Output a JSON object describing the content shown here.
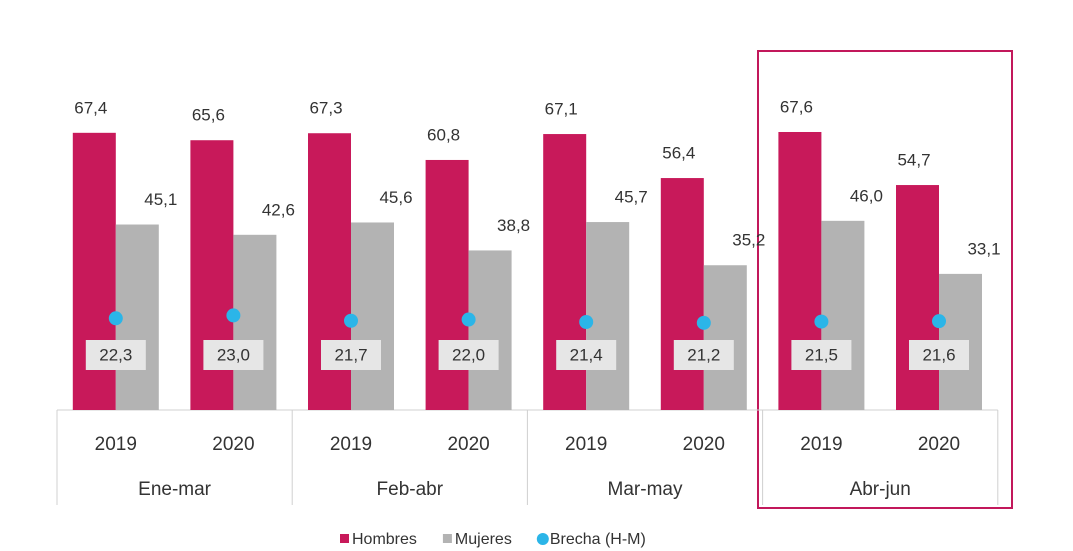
{
  "chart_data": {
    "type": "bar",
    "categories": [
      "2019",
      "2020",
      "2019",
      "2020",
      "2019",
      "2020",
      "2019",
      "2020"
    ],
    "groups": [
      "Ene-mar",
      "Feb-abr",
      "Mar-may",
      "Abr-jun"
    ],
    "ylim": [
      0,
      80
    ],
    "series": [
      {
        "name": "Hombres",
        "type": "bar",
        "color": "#c8195a",
        "values": [
          67.4,
          65.6,
          67.3,
          60.8,
          67.1,
          56.4,
          67.6,
          54.7
        ],
        "value_labels": [
          "67,4",
          "65,6",
          "67,3",
          "60,8",
          "67,1",
          "56,4",
          "67,6",
          "54,7"
        ]
      },
      {
        "name": "Mujeres",
        "type": "bar",
        "color": "#b3b3b3",
        "values": [
          45.1,
          42.6,
          45.6,
          38.8,
          45.7,
          35.2,
          46.0,
          33.1
        ],
        "value_labels": [
          "45,1",
          "42,6",
          "45,6",
          "38,8",
          "45,7",
          "35,2",
          "46,0",
          "33,1"
        ]
      },
      {
        "name": "Brecha (H-M)",
        "type": "point",
        "color": "#2bb5e8",
        "values": [
          22.3,
          23.0,
          21.7,
          22.0,
          21.4,
          21.2,
          21.5,
          21.6
        ],
        "value_labels": [
          "22,3",
          "23,0",
          "21,7",
          "22,0",
          "21,4",
          "21,2",
          "21,5",
          "21,6"
        ]
      }
    ]
  }
}
